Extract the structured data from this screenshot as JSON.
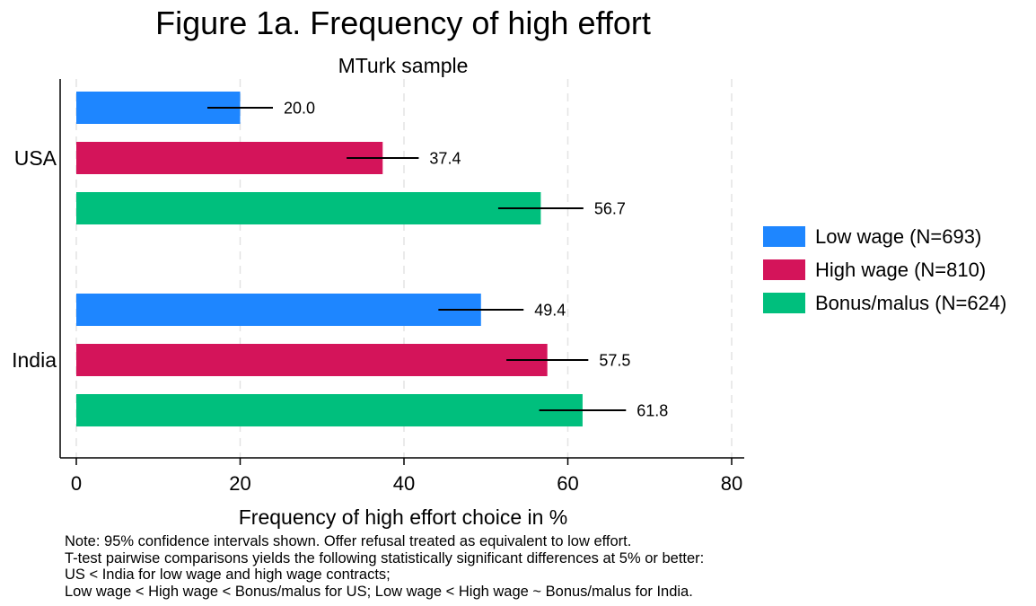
{
  "chart_data": {
    "type": "bar",
    "orientation": "horizontal",
    "title": "Figure 1a. Frequency of high effort",
    "subtitle": "MTurk sample",
    "xlabel": "Frequency of high effort choice in %",
    "ylabel": "",
    "xlim": [
      0,
      80
    ],
    "xticks": [
      0,
      20,
      40,
      60,
      80
    ],
    "grid": "vertical dashed",
    "legend_position": "right",
    "categories": [
      "USA",
      "India"
    ],
    "series": [
      {
        "name": "Low wage (N=693)",
        "color": "#1e86ff",
        "values": [
          20.0,
          49.4
        ],
        "labels": [
          "20.0",
          "49.4"
        ],
        "ci": [
          [
            16.0,
            24.0
          ],
          [
            44.2,
            54.6
          ]
        ]
      },
      {
        "name": "High wage (N=810)",
        "color": "#d4145a",
        "values": [
          37.4,
          57.5
        ],
        "labels": [
          "37.4",
          "57.5"
        ],
        "ci": [
          [
            33.0,
            41.8
          ],
          [
            52.5,
            62.5
          ]
        ]
      },
      {
        "name": "Bonus/malus (N=624)",
        "color": "#00bf7d",
        "values": [
          56.7,
          61.8
        ],
        "labels": [
          "56.7",
          "61.8"
        ],
        "ci": [
          [
            51.5,
            61.9
          ],
          [
            56.5,
            67.1
          ]
        ]
      }
    ]
  },
  "note_lines": [
    "Note: 95% confidence intervals shown. Offer refusal treated as equivalent to low effort.",
    "T-test pairwise comparisons yields the following statistically significant differences at 5% or better:",
    "US < India for low wage and high wage contracts;",
    "Low wage < High wage < Bonus/malus for US; Low wage < High wage ~ Bonus/malus for India."
  ]
}
